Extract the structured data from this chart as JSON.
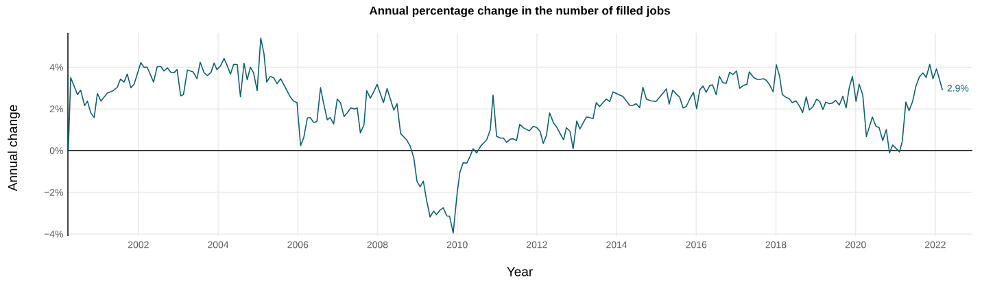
{
  "chart_data": {
    "type": "line",
    "title": "Annual percentage change in the number of filled jobs",
    "xlabel": "Year",
    "ylabel": "Annual change",
    "x": [
      2000.24,
      2000.3,
      2000.47,
      2000.55,
      2000.65,
      2000.72,
      2000.8,
      2000.89,
      2000.97,
      2001.06,
      2001.22,
      2001.36,
      2001.47,
      2001.55,
      2001.64,
      2001.72,
      2001.81,
      2001.89,
      2002.06,
      2002.14,
      2002.22,
      2002.38,
      2002.47,
      2002.56,
      2002.64,
      2002.73,
      2002.81,
      2002.9,
      2002.97,
      2003.06,
      2003.13,
      2003.23,
      2003.37,
      2003.47,
      2003.55,
      2003.65,
      2003.73,
      2003.82,
      2003.9,
      2003.97,
      2004.06,
      2004.15,
      2004.22,
      2004.31,
      2004.39,
      2004.48,
      2004.56,
      2004.65,
      2004.73,
      2004.81,
      2004.89,
      2004.98,
      2005.07,
      2005.15,
      2005.22,
      2005.31,
      2005.4,
      2005.48,
      2005.57,
      2005.67,
      2005.81,
      2005.89,
      2005.98,
      2006.07,
      2006.15,
      2006.24,
      2006.31,
      2006.4,
      2006.48,
      2006.57,
      2006.65,
      2006.74,
      2006.81,
      2006.9,
      2006.99,
      2007.07,
      2007.16,
      2007.24,
      2007.33,
      2007.42,
      2007.49,
      2007.57,
      2007.66,
      2007.73,
      2007.82,
      2007.9,
      2007.99,
      2008.15,
      2008.24,
      2008.41,
      2008.49,
      2008.58,
      2008.73,
      2008.82,
      2008.91,
      2008.99,
      2009.07,
      2009.15,
      2009.23,
      2009.32,
      2009.41,
      2009.48,
      2009.57,
      2009.65,
      2009.74,
      2009.81,
      2009.9,
      2010.0,
      2010.07,
      2010.15,
      2010.24,
      2010.31,
      2010.4,
      2010.49,
      2010.59,
      2010.67,
      2010.74,
      2010.83,
      2010.9,
      2010.99,
      2011.08,
      2011.16,
      2011.24,
      2011.33,
      2011.4,
      2011.49,
      2011.57,
      2011.66,
      2011.81,
      2011.91,
      2012.0,
      2012.08,
      2012.16,
      2012.24,
      2012.32,
      2012.42,
      2012.49,
      2012.67,
      2012.74,
      2012.83,
      2012.91,
      2013.0,
      2013.08,
      2013.24,
      2013.32,
      2013.41,
      2013.49,
      2013.57,
      2013.74,
      2013.83,
      2013.91,
      2014.16,
      2014.33,
      2014.41,
      2014.49,
      2014.58,
      2014.66,
      2014.75,
      2014.85,
      2014.99,
      2015.11,
      2015.25,
      2015.32,
      2015.41,
      2015.51,
      2015.58,
      2015.67,
      2015.75,
      2015.84,
      2015.93,
      2016.01,
      2016.09,
      2016.17,
      2016.25,
      2016.34,
      2016.41,
      2016.5,
      2016.58,
      2016.67,
      2016.75,
      2016.84,
      2016.92,
      2017.01,
      2017.09,
      2017.18,
      2017.27,
      2017.33,
      2017.44,
      2017.53,
      2017.6,
      2017.69,
      2017.76,
      2017.84,
      2017.93,
      2018.01,
      2018.09,
      2018.16,
      2018.25,
      2018.33,
      2018.41,
      2018.5,
      2018.59,
      2018.67,
      2018.76,
      2018.84,
      2018.93,
      2019.02,
      2019.1,
      2019.18,
      2019.25,
      2019.34,
      2019.42,
      2019.5,
      2019.59,
      2019.68,
      2019.76,
      2019.84,
      2019.92,
      2020.01,
      2020.09,
      2020.18,
      2020.27,
      2020.42,
      2020.51,
      2020.59,
      2020.68,
      2020.77,
      2020.85,
      2020.93,
      2021.1,
      2021.17,
      2021.26,
      2021.34,
      2021.43,
      2021.51,
      2021.6,
      2021.69,
      2021.77,
      2021.86,
      2021.94,
      2022.03,
      2022.18
    ],
    "series": [
      {
        "color": "#0b6271",
        "values": [
          0,
          3.51,
          2.69,
          2.9,
          2.16,
          2.38,
          1.83,
          1.59,
          2.74,
          2.38,
          2.76,
          2.87,
          3.04,
          3.43,
          3.29,
          3.67,
          3.02,
          3.18,
          4.22,
          4.0,
          4.0,
          3.29,
          4.02,
          4.04,
          3.82,
          3.97,
          3.76,
          3.75,
          3.89,
          2.63,
          2.69,
          3.87,
          3.78,
          3.45,
          4.24,
          3.73,
          3.6,
          3.75,
          4.2,
          3.89,
          4.06,
          4.42,
          4.11,
          3.67,
          4.14,
          4.13,
          2.58,
          4.19,
          3.4,
          4.0,
          3.73,
          2.88,
          5.4,
          4.66,
          3.29,
          3.56,
          3.48,
          3.21,
          3.45,
          3.09,
          2.58,
          2.38,
          2.3,
          0.24,
          0.63,
          1.57,
          1.59,
          1.35,
          1.4,
          3.02,
          2.25,
          1.48,
          1.59,
          1.28,
          2.47,
          2.3,
          1.64,
          1.81,
          2.05,
          2.0,
          2.05,
          0.85,
          1.24,
          2.88,
          2.52,
          2.8,
          3.18,
          2.3,
          2.98,
          1.94,
          2.25,
          0.82,
          0.52,
          0.22,
          -0.33,
          -1.46,
          -1.73,
          -1.46,
          -2.36,
          -3.18,
          -2.9,
          -3.07,
          -2.85,
          -2.74,
          -3.13,
          -3.15,
          -3.95,
          -2.03,
          -1.02,
          -0.58,
          -0.6,
          -0.33,
          0.09,
          -0.11,
          0.22,
          0.38,
          0.52,
          0.99,
          2.66,
          0.69,
          0.6,
          0.6,
          0.4,
          0.55,
          0.57,
          0.49,
          1.26,
          1.1,
          0.95,
          1.17,
          1.1,
          0.93,
          0.35,
          0.73,
          1.81,
          1.32,
          1.15,
          0.52,
          1.1,
          0.93,
          0.09,
          1.42,
          1.04,
          1.61,
          1.59,
          1.54,
          2.3,
          2.11,
          2.47,
          2.36,
          2.82,
          2.6,
          2.17,
          2.17,
          2.25,
          2.06,
          3.04,
          2.47,
          2.39,
          2.36,
          2.63,
          2.96,
          2.23,
          2.9,
          2.69,
          2.58,
          2.05,
          2.12,
          2.49,
          2.8,
          2.01,
          2.93,
          3.1,
          2.8,
          3.13,
          3.15,
          2.69,
          3.56,
          3.26,
          3.23,
          3.76,
          3.65,
          3.82,
          2.99,
          3.13,
          3.18,
          3.78,
          3.51,
          3.42,
          3.42,
          3.45,
          3.37,
          3.16,
          2.82,
          4.11,
          3.59,
          2.69,
          2.56,
          2.5,
          2.3,
          2.39,
          2.14,
          1.83,
          2.58,
          1.95,
          2.11,
          2.47,
          2.36,
          1.97,
          2.33,
          2.25,
          2.28,
          2.41,
          2.19,
          2.61,
          2.05,
          3.02,
          3.56,
          2.36,
          3.18,
          2.66,
          0.68,
          1.61,
          1.17,
          1.1,
          0.49,
          1.01,
          -0.11,
          0.27,
          -0.06,
          0.44,
          2.33,
          1.92,
          2.36,
          3.07,
          3.54,
          3.73,
          3.51,
          4.14,
          3.45,
          3.92,
          2.9
        ]
      }
    ],
    "xlim": [
      2000.23,
      2022.93
    ],
    "ylim": [
      -4.1,
      5.65
    ],
    "xticks": [
      2002,
      2004,
      2006,
      2008,
      2010,
      2012,
      2014,
      2016,
      2018,
      2020,
      2022
    ],
    "yticks": [
      {
        "value": -4,
        "label": "−4%"
      },
      {
        "value": -2,
        "label": "−2%"
      },
      {
        "value": 0,
        "label": "0%"
      },
      {
        "value": 2,
        "label": "2%"
      },
      {
        "value": 4,
        "label": "4%"
      }
    ],
    "grid": true,
    "ref_lines": [
      {
        "axis": "y",
        "value": 0,
        "color": "#000000"
      }
    ],
    "annotations": [
      {
        "text": "2.9%",
        "x": 2022.18,
        "y": 2.9
      }
    ]
  }
}
